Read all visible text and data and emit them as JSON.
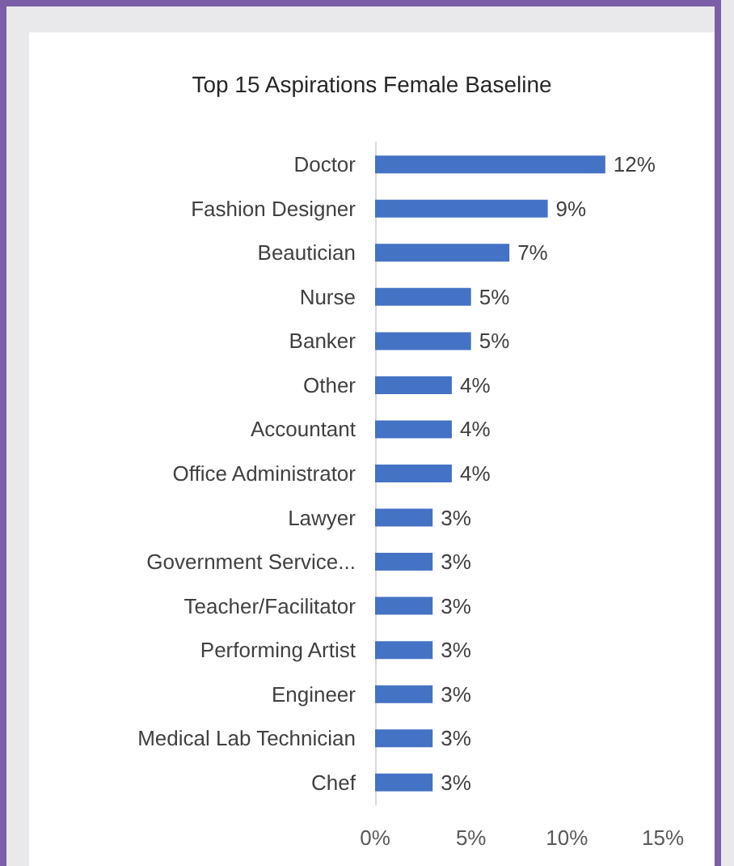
{
  "chart_data": {
    "type": "bar",
    "orientation": "horizontal",
    "title": "Top 15 Aspirations Female Baseline",
    "categories": [
      "Doctor",
      "Fashion Designer",
      "Beautician",
      "Nurse",
      "Banker",
      "Other",
      "Accountant",
      "Office Administrator",
      "Lawyer",
      "Government Service...",
      "Teacher/Facilitator",
      "Performing Artist",
      "Engineer",
      "Medical Lab Technician",
      "Chef"
    ],
    "values": [
      12,
      9,
      7,
      5,
      5,
      4,
      4,
      4,
      3,
      3,
      3,
      3,
      3,
      3,
      3
    ],
    "value_labels": [
      "12%",
      "9%",
      "7%",
      "5%",
      "5%",
      "4%",
      "4%",
      "4%",
      "3%",
      "3%",
      "3%",
      "3%",
      "3%",
      "3%",
      "3%"
    ],
    "color": "#4472c4",
    "xlim": [
      0,
      15
    ],
    "xticks": [
      {
        "value": 0,
        "label": "0%"
      },
      {
        "value": 5,
        "label": "5%"
      },
      {
        "value": 10,
        "label": "10%"
      },
      {
        "value": 15,
        "label": "15%"
      }
    ],
    "grid": false
  }
}
